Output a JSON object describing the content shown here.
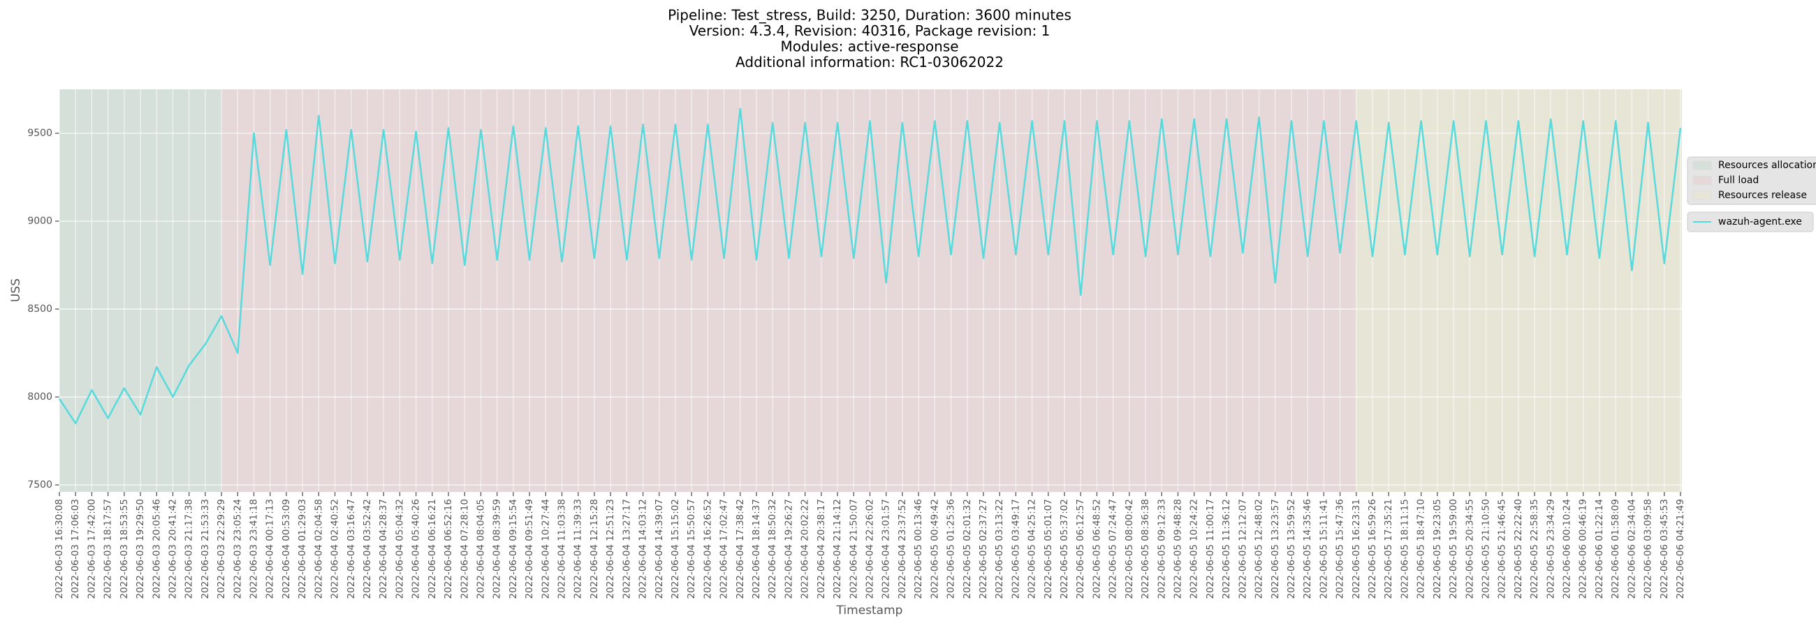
{
  "chart_data": {
    "type": "line",
    "title": [
      "Pipeline: Test_stress, Build: 3250, Duration: 3600 minutes",
      "Version: 4.3.4, Revision: 40316, Package revision: 1",
      "Modules: active-response",
      "Additional information: RC1-03062022"
    ],
    "x_label": "Timestamp",
    "y_label": "USS",
    "x": [
      "2022-06-03 16:30:08",
      "2022-06-03 17:06:03",
      "2022-06-03 17:42:00",
      "2022-06-03 18:17:57",
      "2022-06-03 18:53:55",
      "2022-06-03 19:29:50",
      "2022-06-03 20:05:46",
      "2022-06-03 20:41:42",
      "2022-06-03 21:17:38",
      "2022-06-03 21:53:33",
      "2022-06-03 22:29:29",
      "2022-06-03 23:05:24",
      "2022-06-03 23:41:18",
      "2022-06-04 00:17:13",
      "2022-06-04 00:53:09",
      "2022-06-04 01:29:03",
      "2022-06-04 02:04:58",
      "2022-06-04 02:40:52",
      "2022-06-04 03:16:47",
      "2022-06-04 03:52:42",
      "2022-06-04 04:28:37",
      "2022-06-04 05:04:32",
      "2022-06-04 05:40:26",
      "2022-06-04 06:16:21",
      "2022-06-04 06:52:16",
      "2022-06-04 07:28:10",
      "2022-06-04 08:04:05",
      "2022-06-04 08:39:59",
      "2022-06-04 09:15:54",
      "2022-06-04 09:51:49",
      "2022-06-04 10:27:44",
      "2022-06-04 11:03:38",
      "2022-06-04 11:39:33",
      "2022-06-04 12:15:28",
      "2022-06-04 12:51:23",
      "2022-06-04 13:27:17",
      "2022-06-04 14:03:12",
      "2022-06-04 14:39:07",
      "2022-06-04 15:15:02",
      "2022-06-04 15:50:57",
      "2022-06-04 16:26:52",
      "2022-06-04 17:02:47",
      "2022-06-04 17:38:42",
      "2022-06-04 18:14:37",
      "2022-06-04 18:50:32",
      "2022-06-04 19:26:27",
      "2022-06-04 20:02:22",
      "2022-06-04 20:38:17",
      "2022-06-04 21:14:12",
      "2022-06-04 21:50:07",
      "2022-06-04 22:26:02",
      "2022-06-04 23:01:57",
      "2022-06-04 23:37:52",
      "2022-06-05 00:13:46",
      "2022-06-05 00:49:42",
      "2022-06-05 01:25:36",
      "2022-06-05 02:01:32",
      "2022-06-05 02:37:27",
      "2022-06-05 03:13:22",
      "2022-06-05 03:49:17",
      "2022-06-05 04:25:12",
      "2022-06-05 05:01:07",
      "2022-06-05 05:37:02",
      "2022-06-05 06:12:57",
      "2022-06-05 06:48:52",
      "2022-06-05 07:24:47",
      "2022-06-05 08:00:42",
      "2022-06-05 08:36:38",
      "2022-06-05 09:12:33",
      "2022-06-05 09:48:28",
      "2022-06-05 10:24:22",
      "2022-06-05 11:00:17",
      "2022-06-05 11:36:12",
      "2022-06-05 12:12:07",
      "2022-06-05 12:48:02",
      "2022-06-05 13:23:57",
      "2022-06-05 13:59:52",
      "2022-06-05 14:35:46",
      "2022-06-05 15:11:41",
      "2022-06-05 15:47:36",
      "2022-06-05 16:23:31",
      "2022-06-05 16:59:26",
      "2022-06-05 17:35:21",
      "2022-06-05 18:11:15",
      "2022-06-05 18:47:10",
      "2022-06-05 19:23:05",
      "2022-06-05 19:59:00",
      "2022-06-05 20:34:55",
      "2022-06-05 21:10:50",
      "2022-06-05 21:46:45",
      "2022-06-05 22:22:40",
      "2022-06-05 22:58:35",
      "2022-06-05 23:34:29",
      "2022-06-06 00:10:24",
      "2022-06-06 00:46:19",
      "2022-06-06 01:22:14",
      "2022-06-06 01:58:09",
      "2022-06-06 02:34:04",
      "2022-06-06 03:09:58",
      "2022-06-06 03:45:53",
      "2022-06-06 04:21:49"
    ],
    "series": [
      {
        "name": "wazuh-agent.exe",
        "color": "#57dadc",
        "values": [
          7990,
          7850,
          8040,
          7880,
          8050,
          7900,
          8170,
          8000,
          8180,
          8300,
          8460,
          8250,
          9500,
          8750,
          9520,
          8700,
          9600,
          8760,
          9520,
          8770,
          9520,
          8780,
          9510,
          8760,
          9530,
          8750,
          9520,
          8780,
          9540,
          8780,
          9530,
          8770,
          9540,
          8790,
          9540,
          8780,
          9550,
          8790,
          9550,
          8780,
          9550,
          8790,
          9640,
          8780,
          9560,
          8790,
          9560,
          8800,
          9560,
          8790,
          9570,
          8650,
          9560,
          8800,
          9570,
          8810,
          9570,
          8790,
          9560,
          8810,
          9570,
          8810,
          9570,
          8580,
          9570,
          8810,
          9570,
          8800,
          9580,
          8810,
          9580,
          8800,
          9580,
          8820,
          9590,
          8650,
          9570,
          8800,
          9570,
          8820,
          9570,
          8800,
          9560,
          8810,
          9570,
          8810,
          9570,
          8800,
          9570,
          8810,
          9570,
          8800,
          9580,
          8810,
          9570,
          8790,
          9570,
          8720,
          9560,
          8760,
          9530
        ]
      }
    ],
    "phases": [
      {
        "name": "Resources allocation",
        "start": "2022-06-03 16:30:08",
        "end": "2022-06-03 22:29:29",
        "color": "#d6e0da"
      },
      {
        "name": "Full load",
        "start": "2022-06-03 22:29:29",
        "end": "2022-06-05 16:23:31",
        "color": "#e6d7d9"
      },
      {
        "name": "Resources release",
        "start": "2022-06-05 16:23:31",
        "end": "2022-06-06 04:21:49",
        "color": "#e6e5d6"
      }
    ],
    "ylim": [
      7460,
      9750
    ],
    "yticks": [
      7500,
      8000,
      8500,
      9000,
      9500
    ],
    "grid": true
  }
}
